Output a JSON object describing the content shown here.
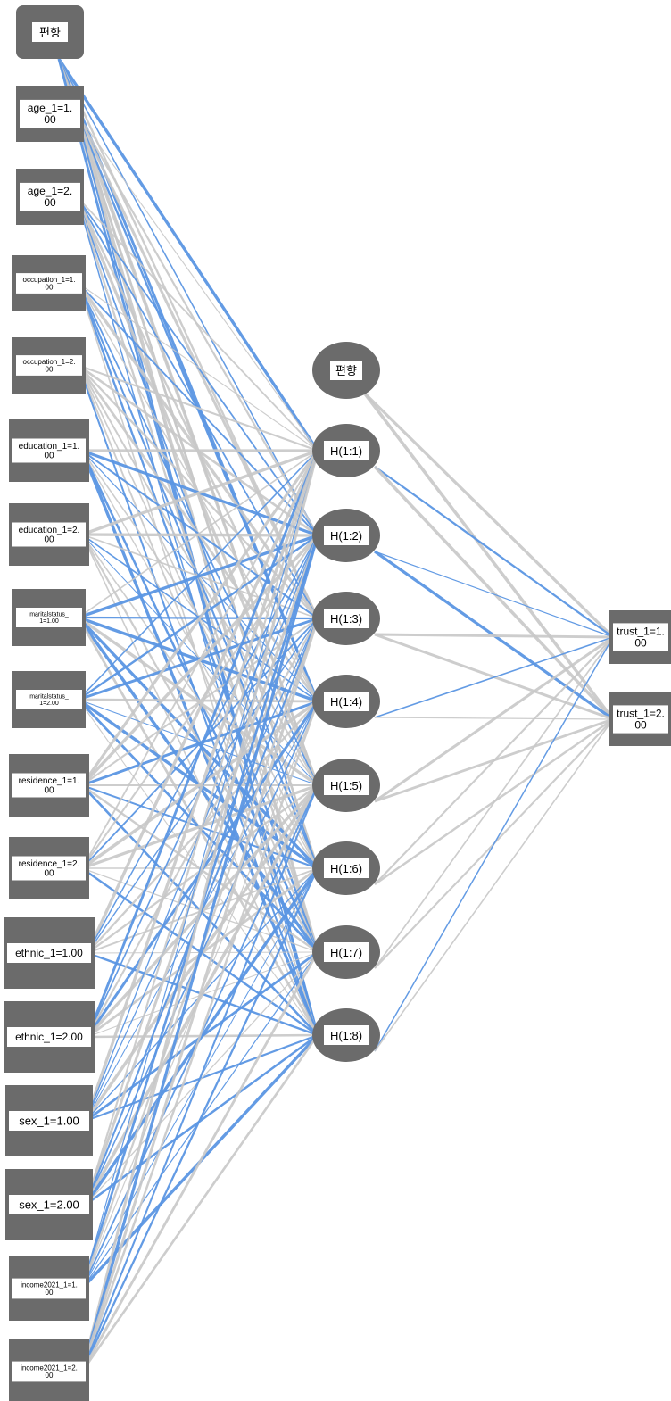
{
  "colors": {
    "node_fill": "#6b6b6b",
    "label_box": "#ffffff",
    "positive_weight": "#5b96e3",
    "negative_weight": "#c8c8c8"
  },
  "input_layer": {
    "bias": "편향",
    "nodes": [
      [
        "age_1=1.",
        "00"
      ],
      [
        "age_1=2.",
        "00"
      ],
      [
        "occupation_1=1.",
        "00"
      ],
      [
        "occupation_1=2.",
        "00"
      ],
      [
        "education_1=1.",
        "00"
      ],
      [
        "education_1=2.",
        "00"
      ],
      [
        "maritalstatus_",
        "1=1.00"
      ],
      [
        "maritalstatus_",
        "1=2.00"
      ],
      [
        "residence_1=1.",
        "00"
      ],
      [
        "residence_1=2.",
        "00"
      ],
      [
        "ethnic_1=1.00"
      ],
      [
        "ethnic_1=2.00"
      ],
      [
        "sex_1=1.00"
      ],
      [
        "sex_1=2.00"
      ],
      [
        "income2021_1=1.",
        "00"
      ],
      [
        "income2021_1=2.",
        "00"
      ]
    ]
  },
  "hidden_layer": {
    "bias": "편향",
    "nodes": [
      "H(1:1)",
      "H(1:2)",
      "H(1:3)",
      "H(1:4)",
      "H(1:5)",
      "H(1:6)",
      "H(1:7)",
      "H(1:8)"
    ]
  },
  "output_layer": {
    "nodes": [
      [
        "trust_1=1.",
        "00"
      ],
      [
        "trust_1=2.",
        "00"
      ]
    ]
  }
}
